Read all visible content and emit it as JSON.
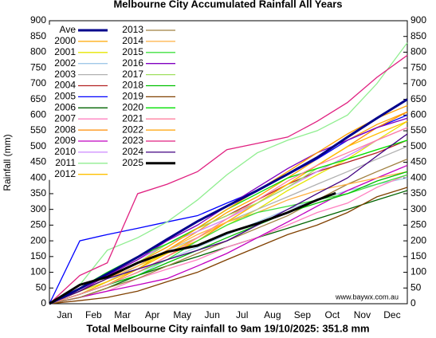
{
  "chart_data": {
    "type": "line",
    "title": "Melbourne City Accumulated Rainfall All Years",
    "x_label": "Total Melbourne City rainfall to 9am 19/10/2025: 351.8 mm",
    "y_label": "Rainfall (mm)",
    "annotation": "www.baywx.com.au",
    "categories": [
      "Jan",
      "Feb",
      "Mar",
      "Apr",
      "May",
      "Jun",
      "Jul",
      "Aug",
      "Sep",
      "Oct",
      "Nov",
      "Dec"
    ],
    "x": [
      0,
      31,
      59,
      90,
      120,
      151,
      181,
      212,
      243,
      273,
      304,
      334,
      365
    ],
    "xlim": [
      0,
      365
    ],
    "ylim": [
      0,
      900
    ],
    "yticks": [
      0,
      50,
      100,
      150,
      200,
      250,
      300,
      350,
      400,
      450,
      500,
      550,
      600,
      650,
      700,
      750,
      800,
      850,
      900
    ],
    "series": [
      {
        "name": "Ave",
        "color": "#00008b",
        "values": [
          0,
          48,
          95,
          148,
          205,
          262,
          310,
          360,
          412,
          465,
          530,
          590,
          650
        ]
      },
      {
        "name": "2000",
        "color": "#ffa500",
        "values": [
          0,
          30,
          60,
          110,
          170,
          230,
          290,
          340,
          400,
          460,
          520,
          570,
          610
        ]
      },
      {
        "name": "2001",
        "color": "#e6e600",
        "values": [
          0,
          40,
          70,
          120,
          160,
          200,
          250,
          300,
          360,
          410,
          460,
          520,
          580
        ]
      },
      {
        "name": "2002",
        "color": "#a0c8e8",
        "values": [
          0,
          20,
          50,
          90,
          140,
          180,
          220,
          260,
          300,
          330,
          360,
          380,
          400
        ]
      },
      {
        "name": "2003",
        "color": "#b0b0b0",
        "values": [
          0,
          30,
          70,
          120,
          170,
          210,
          260,
          300,
          340,
          380,
          420,
          460,
          500
        ]
      },
      {
        "name": "2004",
        "color": "#b22222",
        "values": [
          0,
          40,
          90,
          140,
          190,
          240,
          280,
          330,
          380,
          420,
          450,
          480,
          520
        ]
      },
      {
        "name": "2005",
        "color": "#0000ff",
        "values": [
          0,
          200,
          220,
          240,
          260,
          280,
          320,
          360,
          410,
          460,
          520,
          560,
          600
        ]
      },
      {
        "name": "2006",
        "color": "#006400",
        "values": [
          0,
          20,
          50,
          90,
          120,
          150,
          180,
          210,
          240,
          270,
          300,
          330,
          360
        ]
      },
      {
        "name": "2007",
        "color": "#ff80c0",
        "values": [
          0,
          20,
          40,
          80,
          110,
          140,
          180,
          210,
          250,
          290,
          320,
          370,
          410
        ]
      },
      {
        "name": "2008",
        "color": "#ff8c00",
        "values": [
          0,
          30,
          60,
          100,
          150,
          200,
          260,
          320,
          380,
          440,
          500,
          560,
          610
        ]
      },
      {
        "name": "2009",
        "color": "#c000c0",
        "values": [
          0,
          20,
          40,
          60,
          80,
          120,
          160,
          210,
          260,
          310,
          360,
          400,
          440
        ]
      },
      {
        "name": "2010",
        "color": "#cc88ff",
        "values": [
          0,
          40,
          90,
          140,
          190,
          230,
          270,
          320,
          370,
          420,
          470,
          520,
          560
        ]
      },
      {
        "name": "2011",
        "color": "#90ee90",
        "values": [
          0,
          60,
          170,
          210,
          260,
          330,
          410,
          480,
          520,
          550,
          600,
          700,
          830
        ]
      },
      {
        "name": "2012",
        "color": "#ffc000",
        "values": [
          0,
          30,
          70,
          110,
          160,
          210,
          260,
          320,
          380,
          440,
          500,
          540,
          580
        ]
      },
      {
        "name": "2013",
        "color": "#a08040",
        "values": [
          0,
          20,
          50,
          80,
          120,
          160,
          200,
          240,
          280,
          330,
          380,
          420,
          460
        ]
      },
      {
        "name": "2014",
        "color": "#ffb040",
        "values": [
          0,
          40,
          80,
          120,
          170,
          220,
          260,
          290,
          330,
          360,
          380,
          400,
          420
        ]
      },
      {
        "name": "2015",
        "color": "#40e040",
        "values": [
          0,
          30,
          60,
          100,
          140,
          200,
          250,
          290,
          310,
          330,
          350,
          380,
          410
        ]
      },
      {
        "name": "2016",
        "color": "#8000c0",
        "values": [
          0,
          40,
          90,
          140,
          200,
          250,
          310,
          370,
          430,
          480,
          520,
          560,
          590
        ]
      },
      {
        "name": "2017",
        "color": "#a0e060",
        "values": [
          0,
          40,
          80,
          130,
          190,
          240,
          280,
          320,
          370,
          430,
          460,
          490,
          520
        ]
      },
      {
        "name": "2018",
        "color": "#00c000",
        "values": [
          0,
          30,
          60,
          90,
          130,
          170,
          210,
          250,
          290,
          320,
          350,
          390,
          420
        ]
      },
      {
        "name": "2019",
        "color": "#804000",
        "values": [
          0,
          10,
          20,
          40,
          70,
          100,
          140,
          180,
          220,
          250,
          290,
          340,
          370
        ]
      },
      {
        "name": "2020",
        "color": "#00e000",
        "values": [
          0,
          50,
          100,
          150,
          190,
          240,
          300,
          350,
          400,
          430,
          460,
          490,
          520
        ]
      },
      {
        "name": "2021",
        "color": "#ff80a0",
        "values": [
          0,
          30,
          60,
          100,
          150,
          210,
          270,
          330,
          390,
          440,
          480,
          520,
          560
        ]
      },
      {
        "name": "2022",
        "color": "#ffa000",
        "values": [
          0,
          40,
          80,
          130,
          180,
          240,
          300,
          360,
          420,
          480,
          540,
          590,
          630
        ]
      },
      {
        "name": "2023",
        "color": "#e02080",
        "values": [
          0,
          90,
          130,
          350,
          380,
          420,
          490,
          510,
          530,
          580,
          640,
          720,
          790
        ]
      },
      {
        "name": "2024",
        "color": "#400080",
        "values": [
          0,
          40,
          80,
          110,
          140,
          170,
          200,
          250,
          300,
          350,
          400,
          470,
          540
        ]
      },
      {
        "name": "2025",
        "color": "#000000",
        "x": [
          0,
          31,
          59,
          90,
          120,
          151,
          181,
          212,
          243,
          273,
          292
        ],
        "values": [
          0,
          60,
          85,
          130,
          165,
          185,
          225,
          255,
          290,
          330,
          351.8
        ]
      }
    ]
  }
}
